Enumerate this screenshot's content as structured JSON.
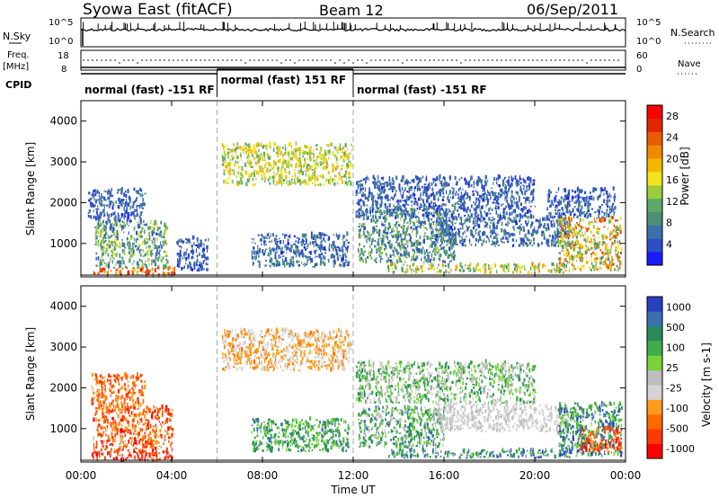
{
  "header": {
    "title": "Syowa East (fitACF)",
    "beam": "Beam 12",
    "date": "06/Sep/2011"
  },
  "top_panels": {
    "nsky_label": "N.Sky",
    "nsky_ticks": [
      "10^5",
      "10^0"
    ],
    "nsearch_label": "N.Search",
    "nsearch_ticks": [
      "10^5",
      "10^0"
    ],
    "freq_label_1": "Freq.",
    "freq_label_2": "[MHz]",
    "freq_ticks": [
      "18",
      "8"
    ],
    "nave_label": "Nave",
    "nave_ticks": [
      "60",
      "0"
    ],
    "cpid_label": "CPID"
  },
  "cpid_segments": [
    {
      "label": "normal (fast) -151 RF",
      "start_h": 0,
      "end_h": 6
    },
    {
      "label": "normal (fast) 151 RF",
      "start_h": 6,
      "end_h": 12
    },
    {
      "label": "normal (fast) -151 RF",
      "start_h": 12,
      "end_h": 24
    }
  ],
  "chart_data": [
    {
      "type": "heatmap",
      "name": "power",
      "xlabel": "Time UT",
      "ylabel": "Slant Range [km]",
      "xlim": [
        0,
        24
      ],
      "ylim": [
        180,
        4500
      ],
      "x_ticks": [
        "00:00",
        "04:00",
        "08:00",
        "12:00",
        "16:00",
        "20:00",
        "00:00"
      ],
      "y_ticks": [
        1000,
        2000,
        3000,
        4000
      ],
      "colorbar_label": "Power [dB]",
      "colorbar_ticks": [
        4,
        8,
        12,
        16,
        20,
        24,
        28
      ],
      "colorbar_range": [
        0,
        30
      ],
      "colors": [
        "#1a1aff",
        "#2b4fc4",
        "#3f6fa8",
        "#4b8f7a",
        "#5aa86a",
        "#9ccc3c",
        "#f2e51e",
        "#f5b800",
        "#f08a00",
        "#ea5c00",
        "#e02600",
        "#ff0000"
      ],
      "regions": [
        {
          "t": [
            0.5,
            4.2
          ],
          "r": [
            180,
            380
          ],
          "v": [
            18,
            30
          ]
        },
        {
          "t": [
            0.6,
            3.8
          ],
          "r": [
            380,
            1500
          ],
          "v": [
            4,
            16
          ]
        },
        {
          "t": [
            0.3,
            2.8
          ],
          "r": [
            1500,
            2300
          ],
          "v": [
            2,
            8
          ]
        },
        {
          "t": [
            4.2,
            5.6
          ],
          "r": [
            300,
            1100
          ],
          "v": [
            2,
            8
          ]
        },
        {
          "t": [
            7.5,
            11.8
          ],
          "r": [
            400,
            1200
          ],
          "v": [
            2,
            10
          ]
        },
        {
          "t": [
            6.2,
            11.9
          ],
          "r": [
            2400,
            3400
          ],
          "v": [
            10,
            20
          ]
        },
        {
          "t": [
            12.2,
            16.5
          ],
          "r": [
            500,
            1800
          ],
          "v": [
            4,
            14
          ]
        },
        {
          "t": [
            13.5,
            21.5
          ],
          "r": [
            250,
            450
          ],
          "v": [
            8,
            22
          ]
        },
        {
          "t": [
            15.5,
            21.5
          ],
          "r": [
            900,
            1600
          ],
          "v": [
            2,
            10
          ]
        },
        {
          "t": [
            21.0,
            23.8
          ],
          "r": [
            300,
            1600
          ],
          "v": [
            8,
            26
          ]
        },
        {
          "t": [
            20.5,
            23.5
          ],
          "r": [
            1600,
            2300
          ],
          "v": [
            2,
            8
          ]
        },
        {
          "t": [
            12.1,
            20.0
          ],
          "r": [
            1600,
            2600
          ],
          "v": [
            2,
            8
          ]
        }
      ]
    },
    {
      "type": "heatmap",
      "name": "velocity",
      "xlabel": "Time UT",
      "ylabel": "Slant Range [km]",
      "xlim": [
        0,
        24
      ],
      "ylim": [
        180,
        4500
      ],
      "x_ticks": [
        "00:00",
        "04:00",
        "08:00",
        "12:00",
        "16:00",
        "20:00",
        "00:00"
      ],
      "y_ticks": [
        1000,
        2000,
        3000,
        4000
      ],
      "colorbar_label": "Velocity [m s-1]",
      "colorbar_ticks": [
        "1000",
        "500",
        "100",
        "25",
        "-25",
        "-100",
        "-500",
        "-1000"
      ],
      "colorbar_range": [
        0,
        1
      ],
      "colors": [
        "#ff0000",
        "#ff3a00",
        "#ff6a00",
        "#ff9a1a",
        "#d4d4d4",
        "#bdbdbd",
        "#79d23a",
        "#3fae4a",
        "#2b8a5a",
        "#3b6fb0",
        "#2a3fbf"
      ],
      "regions": [
        {
          "t": [
            0.4,
            4.0
          ],
          "r": [
            180,
            450
          ],
          "v": [
            0.02,
            0.22
          ]
        },
        {
          "t": [
            0.5,
            4.0
          ],
          "r": [
            450,
            1500
          ],
          "v": [
            0.05,
            0.35
          ]
        },
        {
          "t": [
            0.4,
            2.8
          ],
          "r": [
            1500,
            2300
          ],
          "v": [
            0.1,
            0.35
          ]
        },
        {
          "t": [
            7.5,
            11.8
          ],
          "r": [
            400,
            1200
          ],
          "v": [
            0.55,
            0.85
          ]
        },
        {
          "t": [
            6.2,
            11.9
          ],
          "r": [
            2400,
            3400
          ],
          "v": [
            0.25,
            0.45
          ]
        },
        {
          "t": [
            12.2,
            16.0
          ],
          "r": [
            500,
            1500
          ],
          "v": [
            0.45,
            0.88
          ]
        },
        {
          "t": [
            13.5,
            21.5
          ],
          "r": [
            250,
            450
          ],
          "v": [
            0.62,
            0.92
          ]
        },
        {
          "t": [
            15.5,
            21.5
          ],
          "r": [
            900,
            1600
          ],
          "v": [
            0.4,
            0.5
          ]
        },
        {
          "t": [
            21.0,
            23.8
          ],
          "r": [
            300,
            1600
          ],
          "v": [
            0.55,
            0.99
          ]
        },
        {
          "t": [
            22.0,
            23.8
          ],
          "r": [
            400,
            1000
          ],
          "v": [
            0.02,
            0.3
          ]
        },
        {
          "t": [
            12.1,
            20.0
          ],
          "r": [
            1600,
            2600
          ],
          "v": [
            0.4,
            0.8
          ]
        }
      ]
    }
  ]
}
